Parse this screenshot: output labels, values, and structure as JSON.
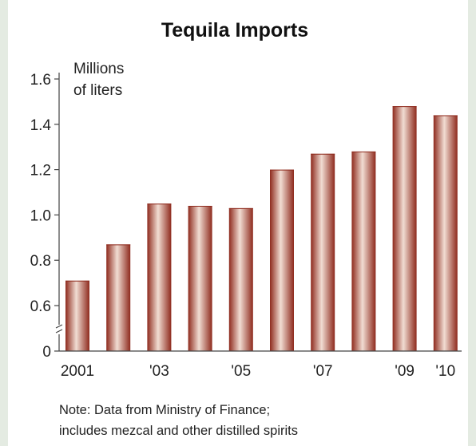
{
  "chart_data": {
    "type": "bar",
    "title": "Tequila Imports",
    "ylabel_lines": [
      "Millions",
      "of liters"
    ],
    "categories": [
      "2001",
      "2002",
      "2003",
      "2004",
      "2005",
      "2006",
      "2007",
      "2008",
      "2009",
      "2010"
    ],
    "x_tick_labels": [
      "2001",
      "",
      "'03",
      "",
      "'05",
      "",
      "'07",
      "",
      "'09",
      "'10"
    ],
    "values": [
      0.71,
      0.87,
      1.05,
      1.04,
      1.03,
      1.2,
      1.27,
      1.28,
      1.48,
      1.44
    ],
    "y_ticks": [
      "0",
      "0.6",
      "0.8",
      "1.0",
      "1.2",
      "1.4",
      "1.6"
    ],
    "ylim": [
      0.5,
      1.6
    ],
    "axis_break": true,
    "bar_colors": {
      "dark": "#8e2a1d",
      "light": "#f1ddd3"
    },
    "grid": false
  },
  "footnote": {
    "line1": "Note: Data from Ministry of Finance;",
    "line2": "includes mezcal and other distilled spirits"
  }
}
